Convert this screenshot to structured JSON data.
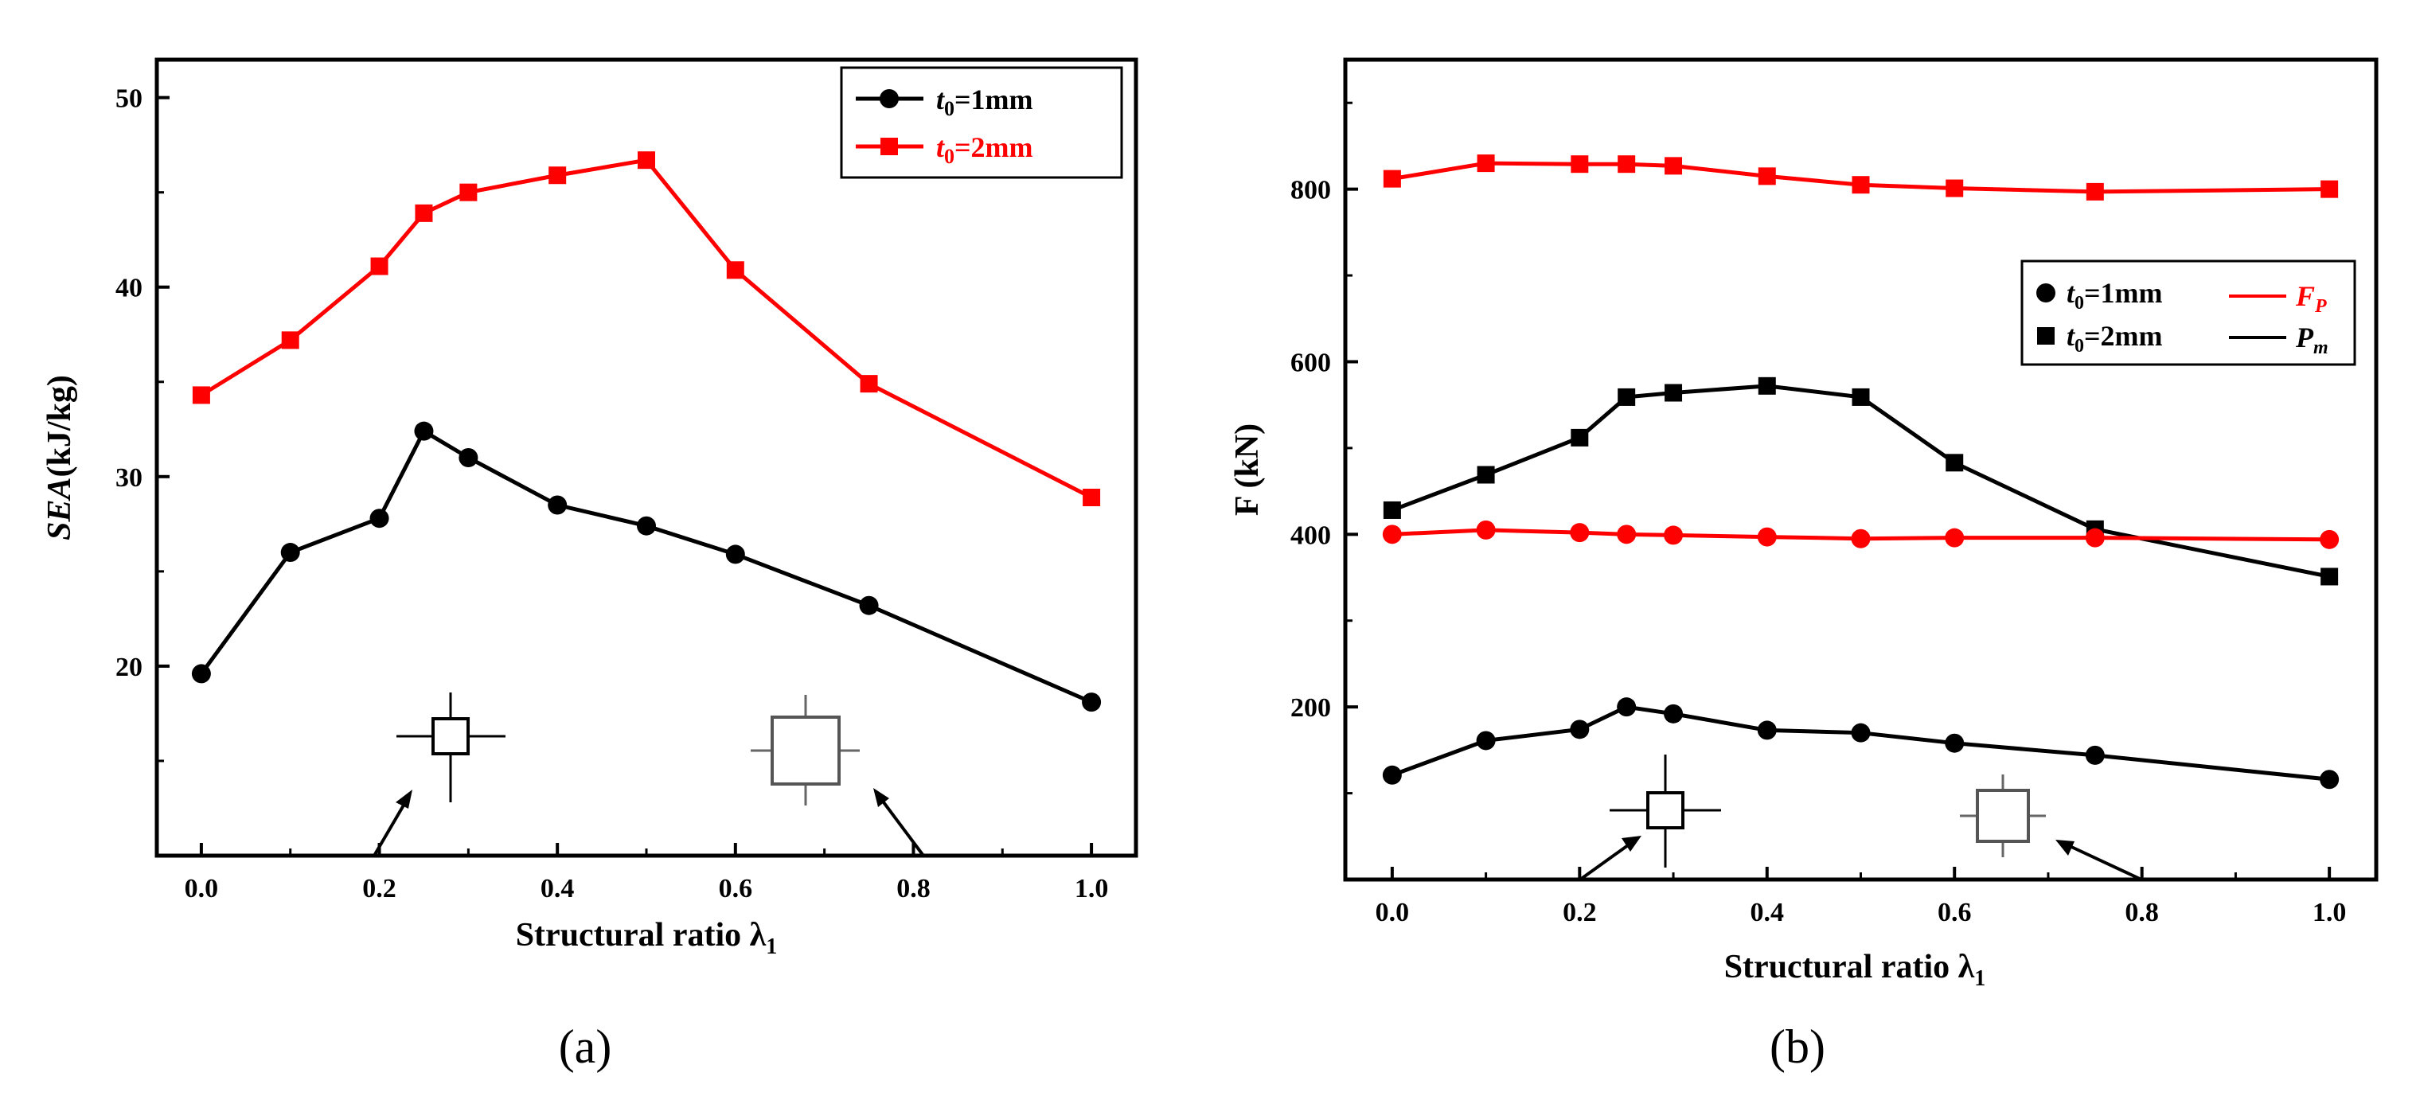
{
  "chart_data": [
    {
      "panel_label": "(a)",
      "type": "line",
      "xlabel": "Structural ratio λ",
      "xlabel_sub": "1",
      "ylabel_prefix": "SEA",
      "ylabel_suffix": "(kJ/kg)",
      "xlim": [
        -0.05,
        1.05
      ],
      "ylim": [
        10,
        52
      ],
      "xticks": [
        0.0,
        0.2,
        0.4,
        0.6,
        0.8,
        1.0
      ],
      "xtick_labels": [
        "0.0",
        "0.2",
        "0.4",
        "0.6",
        "0.8",
        "1.0"
      ],
      "yticks": [
        20,
        30,
        40,
        50
      ],
      "ytick_labels": [
        "20",
        "30",
        "40",
        "50"
      ],
      "grid": false,
      "legend_position": "top-right",
      "series": [
        {
          "name_main": "t",
          "name_sub": "0",
          "name_rest": "=1mm",
          "color": "#000000",
          "marker": "circle",
          "x": [
            0.0,
            0.1,
            0.2,
            0.25,
            0.3,
            0.4,
            0.5,
            0.6,
            0.75,
            1.0
          ],
          "y": [
            19.6,
            26.0,
            27.8,
            32.4,
            31.0,
            28.5,
            27.4,
            25.9,
            23.2,
            18.1
          ]
        },
        {
          "name_main": "t",
          "name_sub": "0",
          "name_rest": "=2mm",
          "color": "#ff0000",
          "marker": "square",
          "x": [
            0.0,
            0.1,
            0.2,
            0.25,
            0.3,
            0.4,
            0.5,
            0.6,
            0.75,
            1.0
          ],
          "y": [
            34.3,
            37.2,
            41.1,
            43.9,
            45.0,
            45.9,
            46.7,
            40.9,
            34.9,
            28.9
          ]
        }
      ]
    },
    {
      "panel_label": "(b)",
      "type": "line",
      "xlabel": "Structural ratio λ",
      "xlabel_sub": "1",
      "ylabel": "F (kN)",
      "xlim": [
        -0.05,
        1.05
      ],
      "ylim": [
        0,
        950
      ],
      "xticks": [
        0.0,
        0.2,
        0.4,
        0.6,
        0.8,
        1.0
      ],
      "xtick_labels": [
        "0.0",
        "0.2",
        "0.4",
        "0.6",
        "0.8",
        "1.0"
      ],
      "yticks": [
        200,
        400,
        600,
        800
      ],
      "ytick_labels": [
        "200",
        "400",
        "600",
        "800"
      ],
      "grid": false,
      "legend_position": "center-right",
      "legend": {
        "markers": [
          {
            "marker": "circle",
            "main": "t",
            "sub": "0",
            "rest": "=1mm"
          },
          {
            "marker": "square",
            "main": "t",
            "sub": "0",
            "rest": "=2mm"
          }
        ],
        "lines": [
          {
            "color": "#ff0000",
            "main": "F",
            "sub": "P"
          },
          {
            "color": "#000000",
            "main": "P",
            "sub": "m"
          }
        ]
      },
      "series": [
        {
          "line": "F_P",
          "thickness": "t0=2mm",
          "color": "#ff0000",
          "marker": "square",
          "x": [
            0.0,
            0.1,
            0.2,
            0.25,
            0.3,
            0.4,
            0.5,
            0.6,
            0.75,
            1.0
          ],
          "y": [
            812,
            830,
            829,
            829,
            827,
            815,
            805,
            801,
            797,
            800
          ]
        },
        {
          "line": "P_m",
          "thickness": "t0=2mm",
          "color": "#000000",
          "marker": "square",
          "x": [
            0.0,
            0.1,
            0.2,
            0.25,
            0.3,
            0.4,
            0.5,
            0.6,
            0.75,
            1.0
          ],
          "y": [
            428,
            469,
            512,
            559,
            564,
            572,
            559,
            483,
            406,
            351
          ]
        },
        {
          "line": "F_P",
          "thickness": "t0=1mm",
          "color": "#ff0000",
          "marker": "circle",
          "x": [
            0.0,
            0.1,
            0.2,
            0.25,
            0.3,
            0.4,
            0.5,
            0.6,
            0.75,
            1.0
          ],
          "y": [
            400,
            405,
            402,
            400,
            399,
            397,
            395,
            396,
            396,
            394
          ]
        },
        {
          "line": "P_m",
          "thickness": "t0=1mm",
          "color": "#000000",
          "marker": "circle",
          "x": [
            0.0,
            0.1,
            0.2,
            0.25,
            0.3,
            0.4,
            0.5,
            0.6,
            0.75,
            1.0
          ],
          "y": [
            121,
            161,
            174,
            200,
            192,
            173,
            170,
            158,
            144,
            116
          ]
        }
      ]
    }
  ]
}
